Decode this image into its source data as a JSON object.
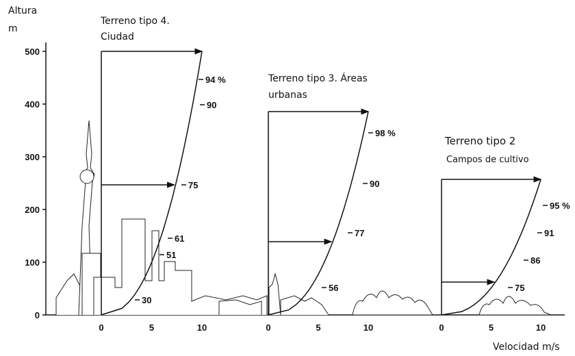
{
  "axis": {
    "y_title": "Altura",
    "y_unit": "m",
    "yticks": [
      0,
      100,
      200,
      300,
      400,
      500
    ],
    "x_title": "Velocidad m/s"
  },
  "profiles": [
    {
      "title_lines": [
        "Terreno tipo 4.",
        "Ciudad"
      ],
      "xticks": [
        0,
        5,
        10
      ],
      "labels": [
        "94 %",
        "90",
        "75",
        "61",
        "51",
        "30"
      ]
    },
    {
      "title_lines": [
        "Terreno tipo 3. Áreas",
        "urbanas"
      ],
      "xticks": [
        0,
        5,
        10
      ],
      "labels": [
        "98 %",
        "90",
        "77",
        "56"
      ]
    },
    {
      "title_lines": [
        "Terreno tipo 2",
        "Campos de cultivo"
      ],
      "xticks": [
        0,
        5,
        10
      ],
      "labels": [
        "95 %",
        "91",
        "86",
        "75"
      ]
    }
  ]
}
